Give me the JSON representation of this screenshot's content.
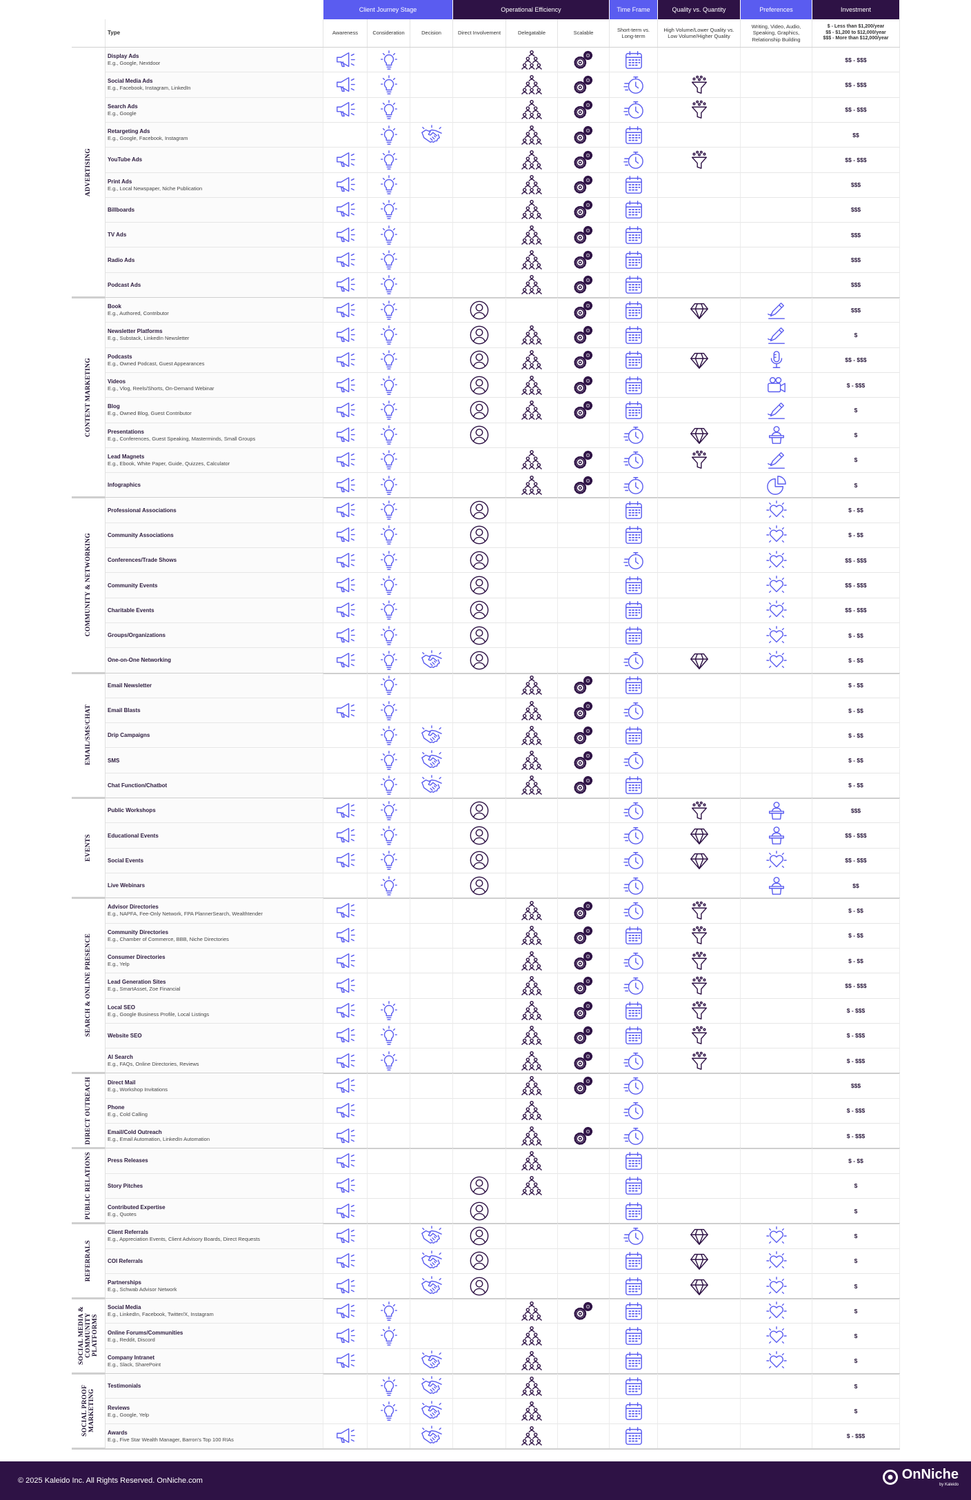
{
  "header": {
    "groups": [
      "Client Journey Stage",
      "Operational Efficiency",
      "Time Frame",
      "Quality vs. Quantity",
      "Preferences",
      "Investment"
    ],
    "columns": [
      "Type",
      "Awareness",
      "Consideration",
      "Decision",
      "Direct Involvement",
      "Delegatable",
      "Scalable",
      "Short-term vs. Long-term",
      "High Volume/Lower Quality vs. Low Volume/Higher Quality",
      "Writing, Video, Audio, Speaking, Graphics, Relationship Building"
    ],
    "investment_legend": [
      "$ - Less than $1,200/year",
      "$$ - $1,200 to $12,000/year",
      "$$$ - More than $12,000/year"
    ]
  },
  "sections": [
    {
      "label": "ADVERTISING",
      "rows": [
        {
          "type": "Display Ads",
          "example": "E.g., Google, Nextdoor",
          "icons": [
            "megaphone",
            "bulb",
            "team",
            "gears",
            "calendar"
          ],
          "investment": "$$ - $$$"
        },
        {
          "type": "Social Media Ads",
          "example": "E.g., Facebook, Instagram, LinkedIn",
          "icons": [
            "megaphone",
            "bulb",
            "team",
            "gears",
            "stopwatch",
            "funnel"
          ],
          "investment": "$$ - $$$"
        },
        {
          "type": "Search Ads",
          "example": "E.g., Google",
          "icons": [
            "megaphone",
            "bulb",
            "team",
            "gears",
            "stopwatch",
            "funnel"
          ],
          "investment": "$$ - $$$"
        },
        {
          "type": "Retargeting Ads",
          "example": "E.g., Google, Facebook, Instagram",
          "icons": [
            "bulb",
            "handshake",
            "team",
            "gears",
            "calendar"
          ],
          "investment": "$$"
        },
        {
          "type": "YouTube Ads",
          "icons": [
            "megaphone",
            "bulb",
            "team",
            "gears",
            "stopwatch",
            "funnel"
          ],
          "investment": "$$ - $$$"
        },
        {
          "type": "Print Ads",
          "example": "E.g., Local Newspaper, Niche Publication",
          "icons": [
            "megaphone",
            "bulb",
            "team",
            "gears",
            "calendar"
          ],
          "investment": "$$$"
        },
        {
          "type": "Billboards",
          "icons": [
            "megaphone",
            "bulb",
            "team",
            "gears",
            "calendar"
          ],
          "investment": "$$$"
        },
        {
          "type": "TV Ads",
          "icons": [
            "megaphone",
            "bulb",
            "team",
            "gears",
            "calendar"
          ],
          "investment": "$$$"
        },
        {
          "type": "Radio Ads",
          "icons": [
            "megaphone",
            "bulb",
            "team",
            "gears",
            "calendar"
          ],
          "investment": "$$$"
        },
        {
          "type": "Podcast Ads",
          "icons": [
            "megaphone",
            "bulb",
            "team",
            "gears",
            "calendar"
          ],
          "investment": "$$$"
        }
      ]
    },
    {
      "label": "CONTENT MARKETING",
      "rows": [
        {
          "type": "Book",
          "example": "E.g., Authored, Contributor",
          "icons": [
            "megaphone",
            "bulb",
            "person",
            "gears",
            "calendar",
            "diamond",
            "pen"
          ],
          "investment": "$$$"
        },
        {
          "type": "Newsletter Platforms",
          "example": "E.g., Substack, LinkedIn Newsletter",
          "icons": [
            "megaphone",
            "bulb",
            "person",
            "team",
            "gears",
            "calendar",
            "pen"
          ],
          "investment": "$"
        },
        {
          "type": "Podcasts",
          "example": "E.g., Owned Podcast, Guest Appearances",
          "icons": [
            "megaphone",
            "bulb",
            "person",
            "team",
            "gears",
            "calendar",
            "diamond",
            "mic"
          ],
          "investment": "$$ - $$$"
        },
        {
          "type": "Videos",
          "example": "E.g., Vlog, Reels/Shorts, On-Demand Webinar",
          "icons": [
            "megaphone",
            "bulb",
            "person",
            "team",
            "gears",
            "calendar",
            "camera"
          ],
          "investment": "$ - $$$"
        },
        {
          "type": "Blog",
          "example": "E.g., Owned Blog, Guest Contributor",
          "icons": [
            "megaphone",
            "bulb",
            "person",
            "team",
            "gears",
            "calendar",
            "pen"
          ],
          "investment": "$"
        },
        {
          "type": "Presentations",
          "example": "E.g., Conferences, Guest Speaking, Masterminds, Small Groups",
          "icons": [
            "megaphone",
            "bulb",
            "person",
            "stopwatch",
            "diamond",
            "podium"
          ],
          "investment": "$"
        },
        {
          "type": "Lead Magnets",
          "example": "E.g., Ebook, White Paper, Guide, Quizzes, Calculator",
          "icons": [
            "megaphone",
            "bulb",
            "team",
            "gears",
            "stopwatch",
            "funnel",
            "pen"
          ],
          "investment": "$"
        },
        {
          "type": "Infographics",
          "icons": [
            "megaphone",
            "bulb",
            "team",
            "gears",
            "stopwatch",
            "chart"
          ],
          "investment": "$"
        }
      ]
    },
    {
      "label": "COMMUNITY & NETWORKING",
      "rows": [
        {
          "type": "Professional Associations",
          "icons": [
            "megaphone",
            "bulb",
            "person",
            "calendar",
            "heart"
          ],
          "investment": "$ - $$"
        },
        {
          "type": "Community Associations",
          "icons": [
            "megaphone",
            "bulb",
            "person",
            "calendar",
            "heart"
          ],
          "investment": "$ - $$"
        },
        {
          "type": "Conferences/Trade Shows",
          "icons": [
            "megaphone",
            "bulb",
            "person",
            "stopwatch",
            "heart"
          ],
          "investment": "$$ - $$$"
        },
        {
          "type": "Community Events",
          "icons": [
            "megaphone",
            "bulb",
            "person",
            "calendar",
            "heart"
          ],
          "investment": "$$ - $$$"
        },
        {
          "type": "Charitable Events",
          "icons": [
            "megaphone",
            "bulb",
            "person",
            "calendar",
            "heart"
          ],
          "investment": "$$ - $$$"
        },
        {
          "type": "Groups/Organizations",
          "icons": [
            "megaphone",
            "bulb",
            "person",
            "calendar",
            "heart"
          ],
          "investment": "$ - $$"
        },
        {
          "type": "One-on-One Networking",
          "icons": [
            "megaphone",
            "bulb",
            "handshake",
            "person",
            "stopwatch",
            "diamond",
            "heart"
          ],
          "investment": "$ - $$"
        }
      ]
    },
    {
      "label": "EMAIL/SMS/CHAT",
      "rows": [
        {
          "type": "Email Newsletter",
          "icons": [
            "bulb",
            "team",
            "gears",
            "calendar"
          ],
          "investment": "$ - $$"
        },
        {
          "type": "Email Blasts",
          "icons": [
            "megaphone",
            "bulb",
            "team",
            "gears",
            "stopwatch"
          ],
          "investment": "$ - $$"
        },
        {
          "type": "Drip Campaigns",
          "icons": [
            "bulb",
            "handshake",
            "team",
            "gears",
            "calendar"
          ],
          "investment": "$ - $$"
        },
        {
          "type": "SMS",
          "icons": [
            "bulb",
            "handshake",
            "team",
            "gears",
            "stopwatch"
          ],
          "investment": "$ - $$"
        },
        {
          "type": "Chat Function/Chatbot",
          "icons": [
            "bulb",
            "handshake",
            "team",
            "gears",
            "calendar"
          ],
          "investment": "$ - $$"
        }
      ]
    },
    {
      "label": "EVENTS",
      "rows": [
        {
          "type": "Public Workshops",
          "icons": [
            "megaphone",
            "bulb",
            "person",
            "stopwatch",
            "funnel",
            "podium"
          ],
          "investment": "$$$"
        },
        {
          "type": "Educational Events",
          "icons": [
            "megaphone",
            "bulb",
            "person",
            "stopwatch",
            "diamond",
            "podium"
          ],
          "investment": "$$ - $$$"
        },
        {
          "type": "Social Events",
          "icons": [
            "megaphone",
            "bulb",
            "person",
            "stopwatch",
            "diamond",
            "heart"
          ],
          "investment": "$$ - $$$"
        },
        {
          "type": "Live Webinars",
          "icons": [
            "bulb",
            "person",
            "stopwatch",
            "podium"
          ],
          "investment": "$$"
        }
      ]
    },
    {
      "label": "SEARCH & ONLINE PRESENCE",
      "rows": [
        {
          "type": "Advisor Directories",
          "example": "E.g., NAPFA, Fee-Only Network, FPA PlannerSearch, Wealthtender",
          "icons": [
            "megaphone",
            "team",
            "gears",
            "stopwatch",
            "funnel"
          ],
          "investment": "$ - $$"
        },
        {
          "type": "Community Directories",
          "example": "E.g., Chamber of Commerce, BBB, Niche Directories",
          "icons": [
            "megaphone",
            "team",
            "gears",
            "calendar",
            "funnel"
          ],
          "investment": "$ - $$"
        },
        {
          "type": "Consumer Directories",
          "example": "E.g., Yelp",
          "icons": [
            "megaphone",
            "team",
            "gears",
            "stopwatch",
            "funnel"
          ],
          "investment": "$ - $$"
        },
        {
          "type": "Lead Generation Sites",
          "example": "E.g., SmartAsset, Zoe Financial",
          "icons": [
            "megaphone",
            "team",
            "gears",
            "stopwatch",
            "funnel"
          ],
          "investment": "$$ - $$$"
        },
        {
          "type": "Local SEO",
          "example": "E.g., Google Business Profile, Local Listings",
          "icons": [
            "megaphone",
            "bulb",
            "team",
            "gears",
            "calendar",
            "funnel"
          ],
          "investment": "$ - $$$"
        },
        {
          "type": "Website SEO",
          "icons": [
            "megaphone",
            "bulb",
            "team",
            "gears",
            "calendar",
            "funnel"
          ],
          "investment": "$ - $$$"
        },
        {
          "type": "AI Search",
          "example": "E.g., FAQs, Online Directories, Reviews",
          "icons": [
            "megaphone",
            "bulb",
            "team",
            "gears",
            "stopwatch",
            "funnel"
          ],
          "investment": "$ - $$$"
        }
      ]
    },
    {
      "label": "DIRECT OUTREACH",
      "rows": [
        {
          "type": "Direct Mail",
          "example": "E.g., Workshop Invitations",
          "icons": [
            "megaphone",
            "team",
            "gears",
            "stopwatch"
          ],
          "investment": "$$$"
        },
        {
          "type": "Phone",
          "example": "E.g., Cold Calling",
          "icons": [
            "megaphone",
            "team",
            "stopwatch"
          ],
          "investment": "$ - $$$"
        },
        {
          "type": "Email/Cold Outreach",
          "example": "E.g., Email Automation, LinkedIn Automation",
          "icons": [
            "megaphone",
            "team",
            "gears",
            "stopwatch"
          ],
          "investment": "$ - $$$"
        }
      ]
    },
    {
      "label": "PUBLIC RELATIONS",
      "rows": [
        {
          "type": "Press Releases",
          "icons": [
            "megaphone",
            "team",
            "calendar"
          ],
          "investment": "$ - $$"
        },
        {
          "type": "Story Pitches",
          "icons": [
            "megaphone",
            "person",
            "team",
            "calendar"
          ],
          "investment": "$"
        },
        {
          "type": "Contributed Expertise",
          "example": "E.g., Quotes",
          "icons": [
            "megaphone",
            "person",
            "calendar"
          ],
          "investment": "$"
        }
      ]
    },
    {
      "label": "REFERRALS",
      "rows": [
        {
          "type": "Client Referrals",
          "example": "E.g., Appreciation Events, Client Advisory Boards, Direct Requests",
          "icons": [
            "megaphone",
            "handshake",
            "person",
            "stopwatch",
            "diamond",
            "heart"
          ],
          "investment": "$"
        },
        {
          "type": "COI Referrals",
          "icons": [
            "megaphone",
            "handshake",
            "person",
            "calendar",
            "diamond",
            "heart"
          ],
          "investment": "$"
        },
        {
          "type": "Partnerships",
          "example": "E.g., Schwab Advisor Network",
          "icons": [
            "megaphone",
            "handshake",
            "person",
            "calendar",
            "diamond",
            "heart"
          ],
          "investment": "$"
        }
      ]
    },
    {
      "label": "SOCIAL MEDIA & COMMUNITY PLATFORMS",
      "rows": [
        {
          "type": "Social Media",
          "example": "E.g., LinkedIn, Facebook, Twitter/X, Instagram",
          "icons": [
            "megaphone",
            "bulb",
            "team",
            "gears",
            "calendar",
            "heart"
          ],
          "investment": "$"
        },
        {
          "type": "Online Forums/Communities",
          "example": "E.g., Reddit, Discord",
          "icons": [
            "megaphone",
            "bulb",
            "team",
            "calendar",
            "heart"
          ],
          "investment": "$"
        },
        {
          "type": "Company Intranet",
          "example": "E.g., Slack, SharePoint",
          "icons": [
            "megaphone",
            "handshake",
            "team",
            "calendar",
            "heart"
          ],
          "investment": "$"
        }
      ]
    },
    {
      "label": "SOCIAL PROOF MARKETING",
      "rows": [
        {
          "type": "Testimonials",
          "icons": [
            "bulb",
            "handshake",
            "team",
            "calendar"
          ],
          "investment": "$"
        },
        {
          "type": "Reviews",
          "example": "E.g., Google, Yelp",
          "icons": [
            "bulb",
            "handshake",
            "team",
            "calendar"
          ],
          "investment": "$"
        },
        {
          "type": "Awards",
          "example": "E.g., Five Star Wealth Manager, Barron's Top 100 RIAs",
          "icons": [
            "megaphone",
            "handshake",
            "team",
            "calendar"
          ],
          "investment": "$ - $$$"
        }
      ]
    }
  ],
  "footer": {
    "copyright": "© 2025 Kaleido Inc. All Rights Reserved. OnNiche.com",
    "logo": "OnNiche",
    "logo_sub": "by Kaleido"
  }
}
